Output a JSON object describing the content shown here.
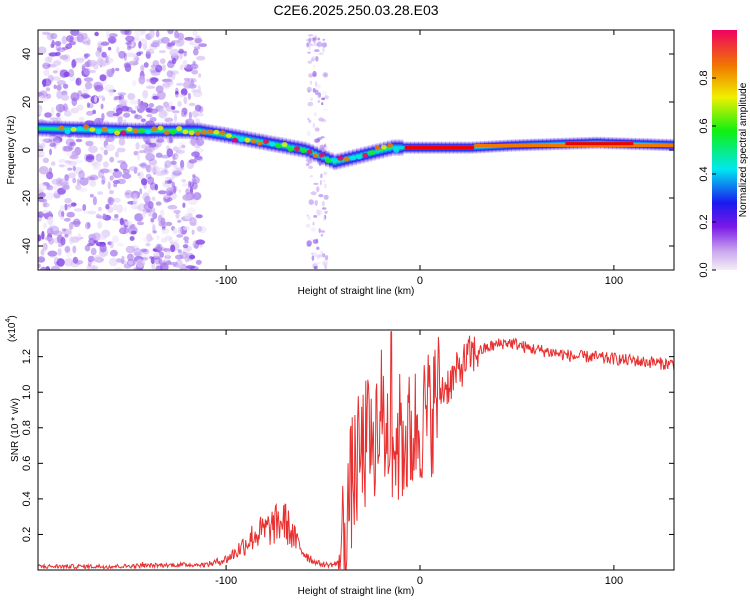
{
  "figure_title": "C2E6.2025.250.03.28.E03",
  "colors": {
    "snr_line": "#e83030",
    "axis": "#000000",
    "background": "#ffffff"
  },
  "chart_data": [
    {
      "type": "heatmap",
      "title": "C2E6.2025.250.03.28.E03",
      "xlabel": "Height of straight line (km)",
      "ylabel": "Frequency (Hz)",
      "xlim": [
        -197,
        131
      ],
      "ylim": [
        -50,
        50
      ],
      "x_ticks": [
        -100,
        0,
        100
      ],
      "y_ticks": [
        -40,
        -20,
        0,
        20,
        40
      ],
      "colorbar": {
        "label": "Normalized spectral amplitude",
        "range": [
          0,
          1
        ],
        "ticks": [
          "0.0",
          "0.2",
          "0.4",
          "0.6",
          "0.8"
        ],
        "tick_values": [
          0,
          0.2,
          0.4,
          0.6,
          0.8
        ]
      },
      "ridge": {
        "description_points": [
          {
            "x": -197,
            "y": 9
          },
          {
            "x": -150,
            "y": 8
          },
          {
            "x": -115,
            "y": 8
          },
          {
            "x": -100,
            "y": 6
          },
          {
            "x": -80,
            "y": 3
          },
          {
            "x": -60,
            "y": 0
          },
          {
            "x": -45,
            "y": -5
          },
          {
            "x": -35,
            "y": -3
          },
          {
            "x": -25,
            "y": -1
          },
          {
            "x": -15,
            "y": 1
          },
          {
            "x": 0,
            "y": 1
          },
          {
            "x": 25,
            "y": 1
          },
          {
            "x": 50,
            "y": 2
          },
          {
            "x": 90,
            "y": 3
          },
          {
            "x": 131,
            "y": 2
          }
        ]
      }
    },
    {
      "type": "line",
      "xlabel": "Height of straight line (km)",
      "ylabel": "SNR (10 * v/v)",
      "y_multiplier": "(x10",
      "y_multiplier_exp": "4",
      "y_multiplier_close": ")",
      "xlim": [
        -197,
        131
      ],
      "ylim": [
        0,
        1.35
      ],
      "x_ticks": [
        -100,
        0,
        100
      ],
      "y_ticks": [
        "0.2",
        "0.4",
        "0.6",
        "0.8",
        "1.0",
        "1.2"
      ],
      "y_tick_values": [
        0.2,
        0.4,
        0.6,
        0.8,
        1.0,
        1.2
      ],
      "series": [
        {
          "name": "SNR",
          "x": [
            -197,
            -180,
            -160,
            -140,
            -120,
            -110,
            -100,
            -95,
            -90,
            -85,
            -80,
            -75,
            -70,
            -65,
            -60,
            -55,
            -50,
            -45,
            -42,
            -40,
            -38,
            -35,
            -32,
            -30,
            -28,
            -25,
            -22,
            -20,
            -18,
            -15,
            -12,
            -10,
            -8,
            -5,
            -2,
            0,
            3,
            6,
            10,
            15,
            20,
            25,
            30,
            35,
            40,
            45,
            50,
            55,
            60,
            65,
            70,
            75,
            80,
            85,
            90,
            95,
            100,
            105,
            110,
            115,
            120,
            125,
            131
          ],
          "y": [
            0.02,
            0.02,
            0.02,
            0.025,
            0.03,
            0.03,
            0.06,
            0.1,
            0.15,
            0.2,
            0.22,
            0.25,
            0.28,
            0.18,
            0.1,
            0.05,
            0.03,
            0.03,
            0.04,
            0.15,
            0.3,
            0.5,
            0.6,
            0.65,
            0.7,
            0.75,
            0.8,
            0.9,
            0.78,
            0.8,
            0.7,
            0.75,
            0.72,
            0.75,
            0.8,
            0.85,
            0.85,
            0.9,
            1.0,
            1.05,
            1.12,
            1.2,
            1.23,
            1.25,
            1.27,
            1.28,
            1.27,
            1.25,
            1.24,
            1.23,
            1.22,
            1.21,
            1.2,
            1.2,
            1.2,
            1.19,
            1.19,
            1.18,
            1.18,
            1.17,
            1.17,
            1.16,
            1.16
          ]
        }
      ]
    }
  ]
}
